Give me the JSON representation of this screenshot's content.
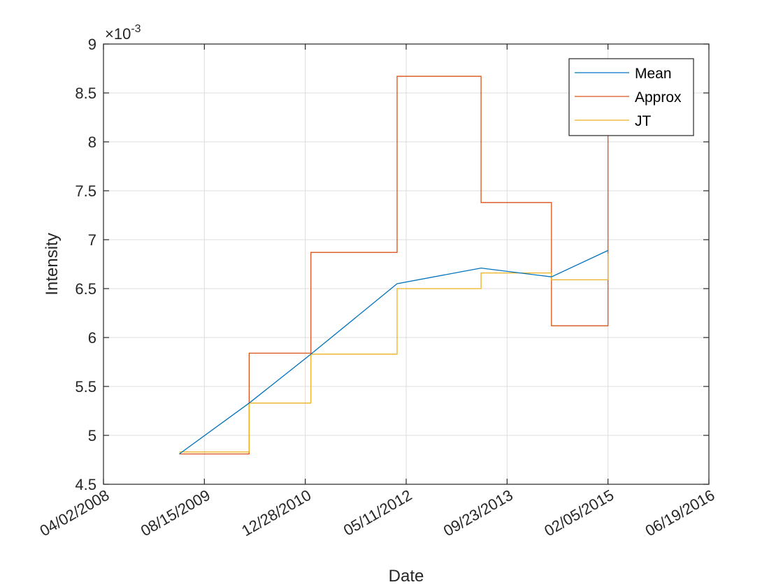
{
  "chart_data": {
    "type": "line",
    "xlabel": "Date",
    "ylabel": "Intensity",
    "y_exponent_label": "×10",
    "y_exponent_power": "-3",
    "ylim": [
      0.0045,
      0.009
    ],
    "yticks": [
      0.0045,
      0.005,
      0.0055,
      0.006,
      0.0065,
      0.007,
      0.0075,
      0.008,
      0.0085,
      0.009
    ],
    "ytick_labels": [
      "4.5",
      "5",
      "5.5",
      "6",
      "6.5",
      "7",
      "7.5",
      "8",
      "8.5",
      "9"
    ],
    "xlim": [
      "2008-04-02",
      "2016-06-19"
    ],
    "xticks": [
      "2008-04-02",
      "2009-08-15",
      "2010-12-28",
      "2012-05-11",
      "2013-09-23",
      "2015-02-05",
      "2016-06-19"
    ],
    "xtick_labels": [
      "04/02/2008",
      "08/15/2009",
      "12/28/2010",
      "05/11/2012",
      "09/23/2013",
      "02/05/2015",
      "06/19/2016"
    ],
    "grid": true,
    "legend_position": "top-right",
    "series": [
      {
        "name": "Mean",
        "color": "#0072BD",
        "style": "line",
        "x": [
          "2009-04-13",
          "2010-03-25",
          "2011-01-25",
          "2012-03-27",
          "2013-05-17",
          "2014-05-01",
          "2015-02-05"
        ],
        "y": [
          0.00481,
          0.00533,
          0.00583,
          0.00655,
          0.00671,
          0.00662,
          0.00689
        ]
      },
      {
        "name": "Approx",
        "color": "#D95319",
        "style": "stairs",
        "x": [
          "2009-04-13",
          "2010-03-25",
          "2011-01-25",
          "2012-03-27",
          "2013-05-17",
          "2014-05-01",
          "2015-02-05"
        ],
        "y": [
          0.00481,
          0.00584,
          0.00687,
          0.00867,
          0.00738,
          0.00612,
          0.00855
        ]
      },
      {
        "name": "JT",
        "color": "#EDB120",
        "style": "stairs",
        "x": [
          "2009-04-13",
          "2010-03-25",
          "2011-01-25",
          "2012-03-27",
          "2013-05-17",
          "2014-05-01",
          "2015-02-05"
        ],
        "y": [
          0.00483,
          0.00533,
          0.00583,
          0.0065,
          0.00666,
          0.00659,
          0.00686
        ]
      }
    ]
  }
}
